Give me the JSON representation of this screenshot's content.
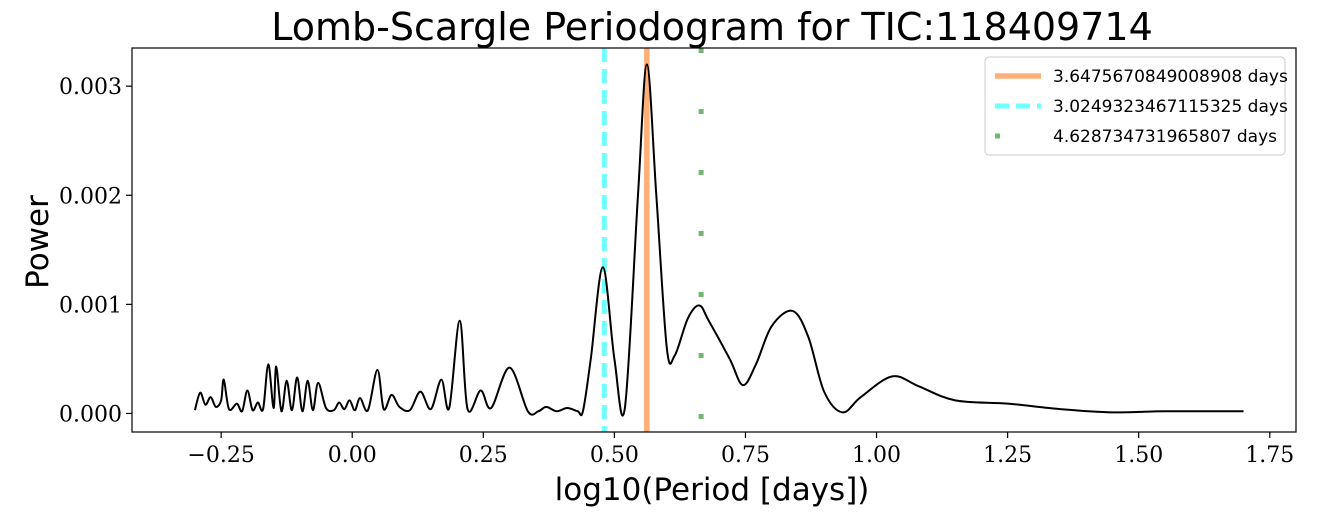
{
  "chart_data": {
    "type": "line",
    "title": "Lomb-Scargle Periodogram for TIC:118409714",
    "xlabel": "log10(Period [days])",
    "ylabel": "Power",
    "xlim": [
      -0.42,
      1.8
    ],
    "ylim": [
      -0.00017,
      0.00335
    ],
    "x_ticks": [
      -0.25,
      0.0,
      0.25,
      0.5,
      0.75,
      1.0,
      1.25,
      1.5,
      1.75
    ],
    "x_tick_labels": [
      "−0.25",
      "0.00",
      "0.25",
      "0.50",
      "0.75",
      "1.00",
      "1.25",
      "1.50",
      "1.75"
    ],
    "y_ticks": [
      0.0,
      0.001,
      0.002,
      0.003
    ],
    "y_tick_labels": [
      "0.000",
      "0.001",
      "0.002",
      "0.003"
    ],
    "grid": false,
    "legend_position": "top-right",
    "series": [
      {
        "color": "#000000",
        "points": [
          [
            -0.3,
            3e-05
          ],
          [
            -0.29,
            0.00019
          ],
          [
            -0.28,
            8e-05
          ],
          [
            -0.27,
            0.00015
          ],
          [
            -0.26,
            6e-05
          ],
          [
            -0.25,
            0.00012
          ],
          [
            -0.245,
            0.00031
          ],
          [
            -0.235,
            4e-05
          ],
          [
            -0.22,
            9e-05
          ],
          [
            -0.21,
            2e-05
          ],
          [
            -0.2,
            0.00021
          ],
          [
            -0.19,
            3e-05
          ],
          [
            -0.18,
            0.0001
          ],
          [
            -0.17,
            4e-05
          ],
          [
            -0.16,
            0.00045
          ],
          [
            -0.15,
            5e-05
          ],
          [
            -0.145,
            0.00043
          ],
          [
            -0.135,
            2e-05
          ],
          [
            -0.125,
            0.0003
          ],
          [
            -0.115,
            3e-05
          ],
          [
            -0.105,
            0.00033
          ],
          [
            -0.095,
            2e-05
          ],
          [
            -0.085,
            0.0003
          ],
          [
            -0.075,
            3e-05
          ],
          [
            -0.065,
            0.00028
          ],
          [
            -0.05,
            5e-05
          ],
          [
            -0.035,
            3e-05
          ],
          [
            -0.025,
            0.0001
          ],
          [
            -0.015,
            4e-05
          ],
          [
            -0.005,
            0.00012
          ],
          [
            0.005,
            3e-05
          ],
          [
            0.015,
            0.00014
          ],
          [
            0.03,
            3e-05
          ],
          [
            0.048,
            0.0004
          ],
          [
            0.06,
            4e-05
          ],
          [
            0.075,
            0.00017
          ],
          [
            0.09,
            6e-05
          ],
          [
            0.11,
            3e-05
          ],
          [
            0.13,
            0.0002
          ],
          [
            0.15,
            4e-05
          ],
          [
            0.17,
            0.00031
          ],
          [
            0.185,
            5e-05
          ],
          [
            0.205,
            0.00085
          ],
          [
            0.22,
            4e-05
          ],
          [
            0.245,
            0.00021
          ],
          [
            0.265,
            5e-05
          ],
          [
            0.3,
            0.00042
          ],
          [
            0.335,
            2e-05
          ],
          [
            0.355,
            2e-05
          ],
          [
            0.37,
            6e-05
          ],
          [
            0.39,
            2e-05
          ],
          [
            0.41,
            5e-05
          ],
          [
            0.43,
            2e-05
          ],
          [
            0.44,
            2e-05
          ],
          [
            0.455,
            0.0005
          ],
          [
            0.478,
            0.00134
          ],
          [
            0.5,
            0.0005
          ],
          [
            0.52,
            5e-05
          ],
          [
            0.545,
            0.002
          ],
          [
            0.562,
            0.0032
          ],
          [
            0.58,
            0.002
          ],
          [
            0.6,
            0.0006
          ],
          [
            0.615,
            0.00053
          ],
          [
            0.64,
            0.00087
          ],
          [
            0.662,
            0.00099
          ],
          [
            0.68,
            0.00085
          ],
          [
            0.72,
            0.0005
          ],
          [
            0.745,
            0.00026
          ],
          [
            0.77,
            0.00045
          ],
          [
            0.8,
            0.0008
          ],
          [
            0.84,
            0.00094
          ],
          [
            0.87,
            0.0007
          ],
          [
            0.9,
            0.0002
          ],
          [
            0.935,
            1e-05
          ],
          [
            0.97,
            0.00015
          ],
          [
            1.03,
            0.00034
          ],
          [
            1.08,
            0.00025
          ],
          [
            1.15,
            0.00012
          ],
          [
            1.25,
            9e-05
          ],
          [
            1.35,
            4e-05
          ],
          [
            1.45,
            1e-05
          ],
          [
            1.55,
            2e-05
          ],
          [
            1.7,
            2e-05
          ]
        ]
      }
    ],
    "vlines": [
      {
        "x": 0.5619,
        "label": "3.6475670849008908 days",
        "color": "#FFA060",
        "style": "solid"
      },
      {
        "x": 0.4807,
        "label": "3.0249323467115325 days",
        "color": "#55FFFF",
        "style": "dashed"
      },
      {
        "x": 0.6654,
        "label": "4.628734731965807 days",
        "color": "#5AAA5A",
        "style": "dotted"
      }
    ]
  }
}
